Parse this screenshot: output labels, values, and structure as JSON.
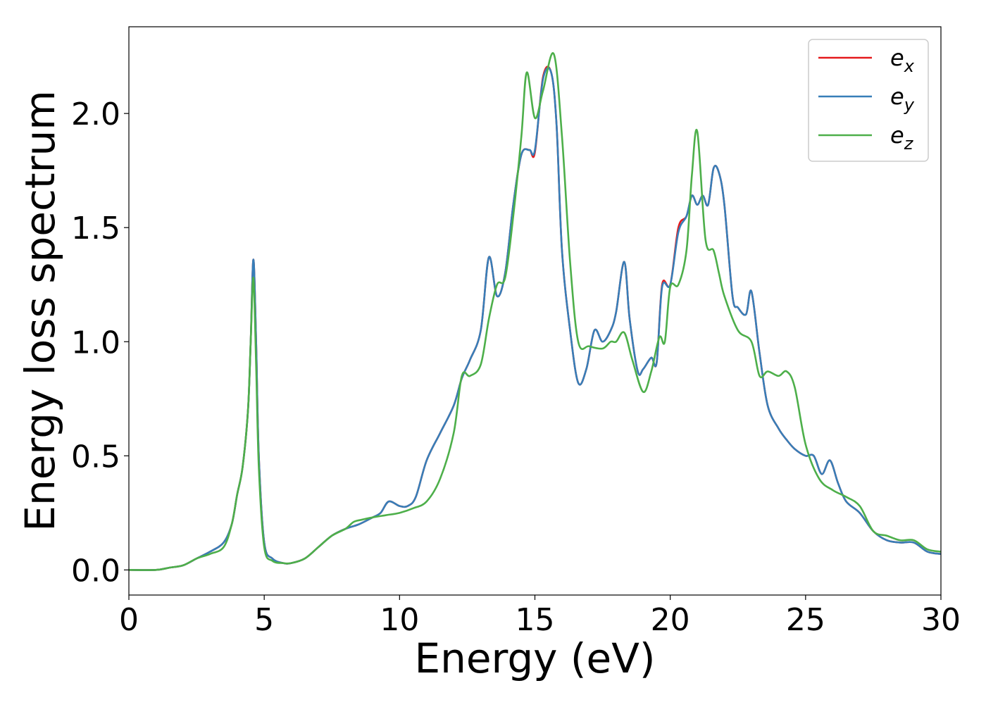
{
  "chart_data": {
    "type": "line",
    "title": "",
    "xlabel": "Energy (eV)",
    "ylabel": "Energy loss spectrum",
    "xlim": [
      0,
      30
    ],
    "ylim": [
      -0.11,
      2.38
    ],
    "xticks": [
      0,
      5,
      10,
      15,
      20,
      25,
      30
    ],
    "xtick_labels": [
      "0",
      "5",
      "10",
      "15",
      "20",
      "25",
      "30"
    ],
    "yticks": [
      0.0,
      0.5,
      1.0,
      1.5,
      2.0
    ],
    "ytick_labels": [
      "0.0",
      "0.5",
      "1.0",
      "1.5",
      "2.0"
    ],
    "grid": false,
    "legend": {
      "position": "top-right"
    },
    "series": [
      {
        "name": "e_x",
        "legend_base": "e",
        "legend_sub": "x",
        "color": "#e41a1c",
        "x": [
          0,
          1,
          1.5,
          2,
          2.5,
          3,
          3.5,
          3.8,
          4.0,
          4.2,
          4.4,
          4.5,
          4.6,
          4.7,
          4.8,
          5.0,
          5.3,
          5.7,
          6.0,
          6.5,
          7.0,
          7.5,
          8.0,
          8.5,
          9.0,
          9.3,
          9.6,
          10.0,
          10.3,
          10.6,
          11.0,
          11.5,
          12.0,
          12.3,
          12.6,
          13.0,
          13.3,
          13.6,
          13.9,
          14.2,
          14.5,
          14.8,
          15.0,
          15.3,
          15.6,
          15.8,
          16.0,
          16.3,
          16.6,
          16.9,
          17.2,
          17.5,
          17.8,
          18.0,
          18.3,
          18.5,
          18.8,
          19.0,
          19.3,
          19.5,
          19.7,
          20.0,
          20.3,
          20.6,
          20.8,
          21.0,
          21.2,
          21.4,
          21.6,
          21.8,
          22.0,
          22.3,
          22.5,
          22.8,
          23.0,
          23.3,
          23.6,
          24.0,
          24.3,
          24.6,
          25.0,
          25.3,
          25.6,
          25.9,
          26.2,
          26.5,
          27.0,
          27.5,
          28.0,
          28.5,
          29.0,
          29.5,
          30.0
        ],
        "values": [
          0.0,
          0.0,
          0.01,
          0.02,
          0.05,
          0.08,
          0.12,
          0.2,
          0.33,
          0.45,
          0.7,
          1.0,
          1.36,
          1.0,
          0.5,
          0.12,
          0.05,
          0.03,
          0.03,
          0.05,
          0.1,
          0.15,
          0.18,
          0.2,
          0.23,
          0.25,
          0.3,
          0.28,
          0.28,
          0.32,
          0.48,
          0.6,
          0.72,
          0.84,
          0.92,
          1.05,
          1.37,
          1.2,
          1.3,
          1.6,
          1.82,
          1.84,
          1.83,
          2.16,
          2.18,
          1.95,
          1.4,
          1.05,
          0.82,
          0.88,
          1.05,
          1.0,
          1.05,
          1.13,
          1.35,
          1.1,
          0.87,
          0.88,
          0.93,
          0.91,
          1.25,
          1.25,
          1.5,
          1.55,
          1.64,
          1.6,
          1.64,
          1.6,
          1.76,
          1.74,
          1.6,
          1.2,
          1.15,
          1.12,
          1.22,
          0.95,
          0.72,
          0.62,
          0.57,
          0.53,
          0.5,
          0.5,
          0.42,
          0.48,
          0.38,
          0.3,
          0.25,
          0.17,
          0.13,
          0.12,
          0.12,
          0.08,
          0.07
        ]
      },
      {
        "name": "e_y",
        "legend_base": "e",
        "legend_sub": "y",
        "color": "#377eb8",
        "x": [
          0,
          1,
          1.5,
          2,
          2.5,
          3,
          3.5,
          3.8,
          4.0,
          4.2,
          4.4,
          4.5,
          4.6,
          4.7,
          4.8,
          5.0,
          5.3,
          5.7,
          6.0,
          6.5,
          7.0,
          7.5,
          8.0,
          8.5,
          9.0,
          9.3,
          9.6,
          10.0,
          10.3,
          10.6,
          11.0,
          11.5,
          12.0,
          12.3,
          12.6,
          13.0,
          13.3,
          13.6,
          13.9,
          14.2,
          14.5,
          14.8,
          15.0,
          15.3,
          15.6,
          15.8,
          16.0,
          16.3,
          16.6,
          16.9,
          17.2,
          17.5,
          17.8,
          18.0,
          18.3,
          18.5,
          18.8,
          19.0,
          19.3,
          19.5,
          19.7,
          20.0,
          20.3,
          20.6,
          20.8,
          21.0,
          21.2,
          21.4,
          21.6,
          21.8,
          22.0,
          22.3,
          22.5,
          22.8,
          23.0,
          23.3,
          23.6,
          24.0,
          24.3,
          24.6,
          25.0,
          25.3,
          25.6,
          25.9,
          26.2,
          26.5,
          27.0,
          27.5,
          28.0,
          28.5,
          29.0,
          29.5,
          30.0
        ],
        "values": [
          0.0,
          0.0,
          0.01,
          0.02,
          0.05,
          0.08,
          0.12,
          0.2,
          0.33,
          0.45,
          0.7,
          1.0,
          1.36,
          1.0,
          0.5,
          0.12,
          0.05,
          0.03,
          0.03,
          0.05,
          0.1,
          0.15,
          0.18,
          0.2,
          0.23,
          0.25,
          0.3,
          0.28,
          0.28,
          0.32,
          0.48,
          0.6,
          0.72,
          0.84,
          0.92,
          1.05,
          1.37,
          1.2,
          1.3,
          1.6,
          1.82,
          1.84,
          1.84,
          2.15,
          2.18,
          1.95,
          1.4,
          1.05,
          0.82,
          0.88,
          1.05,
          1.0,
          1.05,
          1.13,
          1.35,
          1.1,
          0.87,
          0.88,
          0.93,
          0.91,
          1.24,
          1.25,
          1.48,
          1.55,
          1.64,
          1.6,
          1.64,
          1.6,
          1.76,
          1.74,
          1.6,
          1.2,
          1.15,
          1.12,
          1.22,
          0.95,
          0.72,
          0.62,
          0.57,
          0.53,
          0.5,
          0.5,
          0.42,
          0.48,
          0.38,
          0.3,
          0.25,
          0.17,
          0.13,
          0.12,
          0.12,
          0.08,
          0.07
        ]
      },
      {
        "name": "e_z",
        "legend_base": "e",
        "legend_sub": "z",
        "color": "#4daf4a",
        "x": [
          0,
          1,
          1.5,
          2,
          2.5,
          3,
          3.5,
          3.8,
          4.0,
          4.2,
          4.4,
          4.5,
          4.6,
          4.7,
          4.8,
          5.0,
          5.3,
          5.7,
          6.0,
          6.5,
          7.0,
          7.5,
          8.0,
          8.3,
          8.6,
          9.0,
          9.5,
          10.0,
          10.5,
          11.0,
          11.5,
          12.0,
          12.3,
          12.6,
          13.0,
          13.3,
          13.6,
          13.9,
          14.2,
          14.5,
          14.7,
          15.0,
          15.3,
          15.7,
          16.0,
          16.3,
          16.6,
          17.0,
          17.5,
          17.8,
          18.0,
          18.3,
          18.6,
          19.0,
          19.3,
          19.6,
          19.8,
          20.0,
          20.3,
          20.6,
          20.8,
          21.0,
          21.3,
          21.6,
          21.8,
          22.0,
          22.5,
          23.0,
          23.3,
          23.6,
          24.0,
          24.3,
          24.6,
          25.0,
          25.5,
          26.0,
          26.5,
          27.0,
          27.5,
          28.0,
          28.5,
          29.0,
          29.5,
          30.0
        ],
        "values": [
          0.0,
          0.0,
          0.01,
          0.02,
          0.05,
          0.07,
          0.1,
          0.2,
          0.33,
          0.45,
          0.7,
          1.0,
          1.28,
          0.9,
          0.45,
          0.1,
          0.04,
          0.03,
          0.03,
          0.05,
          0.1,
          0.15,
          0.18,
          0.21,
          0.22,
          0.23,
          0.24,
          0.25,
          0.27,
          0.3,
          0.4,
          0.6,
          0.85,
          0.85,
          0.9,
          1.1,
          1.25,
          1.28,
          1.55,
          1.9,
          2.18,
          1.98,
          2.1,
          2.26,
          1.9,
          1.35,
          1.0,
          0.98,
          0.97,
          1.0,
          1.0,
          1.04,
          0.92,
          0.78,
          0.87,
          1.02,
          1.0,
          1.24,
          1.25,
          1.4,
          1.73,
          1.92,
          1.45,
          1.4,
          1.3,
          1.2,
          1.05,
          1.0,
          0.85,
          0.87,
          0.85,
          0.87,
          0.8,
          0.55,
          0.4,
          0.35,
          0.32,
          0.28,
          0.17,
          0.15,
          0.13,
          0.13,
          0.09,
          0.08
        ]
      }
    ]
  }
}
